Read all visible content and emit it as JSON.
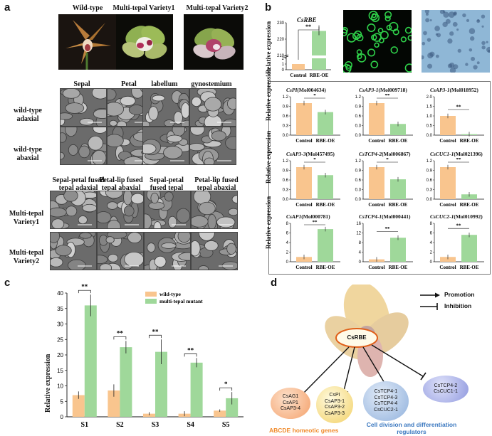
{
  "panels": {
    "a": "a",
    "b": "b",
    "c": "c",
    "d": "d"
  },
  "panel_a": {
    "photos": [
      "Wild-type",
      "Multi-tepal Variety1",
      "Multi-tepal Variety2"
    ],
    "sem_columns": [
      "Sepal",
      "Petal",
      "labellum",
      "gynostemium"
    ],
    "sem_rows": [
      "wild-type adaxial",
      "wild-type abaxial"
    ],
    "mt_columns": [
      "Sepal-petal fused tepal adaxial",
      "Petal-lip fused tepal abaxial",
      "Sepal-petal fused tepal abaxial",
      "Petal-lip fused tepal abaxial"
    ],
    "mt_rows": [
      "Multi-tepal Variety1",
      "Multi-tepal Variety2"
    ]
  },
  "panel_b": {
    "main_chart": {
      "title": "CsRBE",
      "ylabel": "Relative expression",
      "yticks": [
        "0",
        "1",
        "2",
        "210",
        "220",
        "230"
      ],
      "categories": [
        "Control",
        "RBE-OE"
      ],
      "sig": "**"
    },
    "grid_ylabel": "Relative expression",
    "charts": [
      {
        "gene": "CsPI",
        "id": "(Mol004634)",
        "yticks": [
          "0.0",
          "0.3",
          "0.6",
          "0.9",
          "1.2"
        ],
        "sig": "*"
      },
      {
        "gene": "CsAP3-1",
        "id": "(Mol009718)",
        "yticks": [
          "0.0",
          "0.3",
          "0.6",
          "0.9",
          "1.2"
        ],
        "sig": "**"
      },
      {
        "gene": "CsAP3-1",
        "id": "(Mol018952)",
        "yticks": [
          "0.0",
          "0.5",
          "1.0",
          "1.5",
          "2.0"
        ],
        "sig": "**"
      },
      {
        "gene": "CsAP3-3",
        "id": "(Mol457495)",
        "yticks": [
          "0.0",
          "0.3",
          "0.6",
          "0.9",
          "1.2"
        ],
        "sig": "*"
      },
      {
        "gene": "CsTCP4-2",
        "id": "(Mol006867)",
        "yticks": [
          "0.0",
          "0.3",
          "0.6",
          "0.9",
          "1.2"
        ],
        "sig": "*"
      },
      {
        "gene": "CsCUC1-1",
        "id": "(Mol021396)",
        "yticks": [
          "0.0",
          "0.3",
          "0.6",
          "0.9",
          "1.2"
        ],
        "sig": "**"
      },
      {
        "gene": "CsAP1",
        "id": "(Mol000781)",
        "yticks": [
          "0",
          "2",
          "4",
          "6",
          "8"
        ],
        "sig": "**"
      },
      {
        "gene": "CsTCP4-1",
        "id": "(Mol000441)",
        "yticks": [
          "0",
          "4",
          "8",
          "12",
          "16"
        ],
        "sig": "**"
      },
      {
        "gene": "CsCUC2-1",
        "id": "(Mol010992)",
        "yticks": [
          "0",
          "2",
          "4",
          "6",
          "8"
        ],
        "sig": "**"
      }
    ],
    "categories": [
      "Control",
      "RBE-OE"
    ]
  },
  "panel_c": {
    "ylabel": "Relative expression",
    "yticks": [
      "0",
      "5",
      "10",
      "15",
      "20",
      "25",
      "30",
      "35",
      "40"
    ],
    "sig": [
      "**",
      "**",
      "**",
      "**",
      "*"
    ]
  },
  "panel_d": {
    "center": "CsRBE",
    "legend": {
      "promotion": "Promotion",
      "inhibition": "Inhibition"
    },
    "nodes": [
      [
        "CsAG1",
        "CsAP1",
        "CsAP3-4"
      ],
      [
        "CsPI",
        "CsAP3-1",
        "CsAP3-2",
        "CsAP3-3"
      ],
      [
        "CsTCP4-1",
        "CsTCP4-3",
        "CsTCP4-4",
        "CsCUC2-1"
      ],
      [
        "CsTCP4-2",
        "CsCUC1-1"
      ]
    ],
    "group_abcde": "ABCDE homeotic genes",
    "group_cell": "Cell division and differentiation regulators"
  },
  "colors": {
    "control": "#f9c58e",
    "treatment": "#9fd89a",
    "abcde": "#f08a2a",
    "cell": "#3c79c0"
  },
  "chart_data": [
    {
      "type": "bar",
      "title": "CsRBE",
      "ylabel": "Relative expression",
      "categories": [
        "Control",
        "RBE-OE"
      ],
      "values": [
        1,
        225
      ],
      "axis_break": [
        2,
        210
      ]
    },
    {
      "type": "bar",
      "categories": [
        "Control",
        "RBE-OE"
      ],
      "series": [
        {
          "name": "CsPI(Mol004634)",
          "values": [
            1.0,
            0.72
          ],
          "ylim": [
            0,
            1.2
          ]
        },
        {
          "name": "CsAP3-1(Mol009718)",
          "values": [
            1.0,
            0.35
          ],
          "ylim": [
            0,
            1.2
          ]
        },
        {
          "name": "CsAP3-1(Mol018952)",
          "values": [
            1.0,
            0.05
          ],
          "ylim": [
            0,
            2.0
          ]
        },
        {
          "name": "CsAP3-3(Mol457495)",
          "values": [
            1.0,
            0.75
          ],
          "ylim": [
            0,
            1.2
          ]
        },
        {
          "name": "CsTCP4-2(Mol006867)",
          "values": [
            1.0,
            0.62
          ],
          "ylim": [
            0,
            1.2
          ]
        },
        {
          "name": "CsCUC1-1(Mol021396)",
          "values": [
            1.0,
            0.15
          ],
          "ylim": [
            0,
            1.2
          ]
        },
        {
          "name": "CsAP1(Mol000781)",
          "values": [
            1.0,
            6.8
          ],
          "ylim": [
            0,
            8
          ]
        },
        {
          "name": "CsTCP4-1(Mol000441)",
          "values": [
            1.0,
            10.0
          ],
          "ylim": [
            0,
            16
          ]
        },
        {
          "name": "CsCUC2-1(Mol010992)",
          "values": [
            1.0,
            5.6
          ],
          "ylim": [
            0,
            8
          ]
        }
      ]
    },
    {
      "type": "bar",
      "ylabel": "Relative expression",
      "categories": [
        "S1",
        "S2",
        "S3",
        "S4",
        "S5"
      ],
      "ylim": [
        0,
        40
      ],
      "series": [
        {
          "name": "wild-type",
          "values": [
            7,
            8.5,
            1,
            1,
            2
          ]
        },
        {
          "name": "multi-tepal mutant",
          "values": [
            36,
            22.5,
            21,
            17.5,
            6
          ]
        }
      ]
    }
  ]
}
